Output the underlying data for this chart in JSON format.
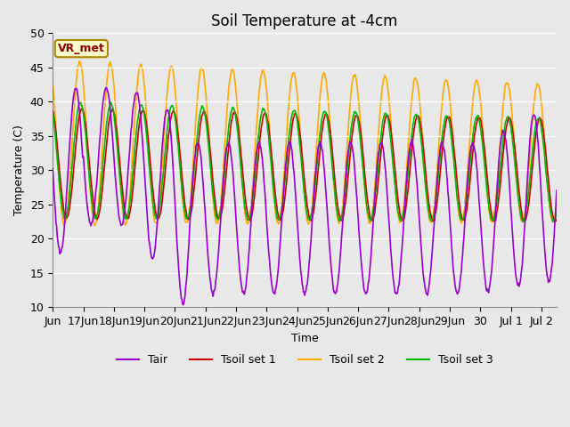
{
  "title": "Soil Temperature at -4cm",
  "xlabel": "Time",
  "ylabel": "Temperature (C)",
  "ylim": [
    10,
    50
  ],
  "xlim_days": [
    0.0,
    16.5
  ],
  "background_color": "#e8e8e8",
  "tair_color": "#9900cc",
  "tsoil1_color": "#cc0000",
  "tsoil2_color": "#ffaa00",
  "tsoil3_color": "#00bb00",
  "legend_labels": [
    "Tair",
    "Tsoil set 1",
    "Tsoil set 2",
    "Tsoil set 3"
  ],
  "annotation_text": "VR_met",
  "annotation_bg": "#ffffcc",
  "annotation_border": "#aa8800",
  "annotation_text_color": "#880000",
  "xtick_labels": [
    "Jun",
    "17Jun",
    "18Jun",
    "19Jun",
    "20Jun",
    "21Jun",
    "22Jun",
    "23Jun",
    "24Jun",
    "25Jun",
    "26Jun",
    "27Jun",
    "28Jun",
    "29Jun",
    "30",
    "Jul 1",
    "Jul 2"
  ],
  "xtick_positions": [
    0,
    1,
    2,
    3,
    4,
    5,
    6,
    7,
    8,
    9,
    10,
    11,
    12,
    13,
    14,
    15,
    16
  ],
  "ytick_positions": [
    10,
    15,
    20,
    25,
    30,
    35,
    40,
    45,
    50
  ],
  "font_size": 9
}
